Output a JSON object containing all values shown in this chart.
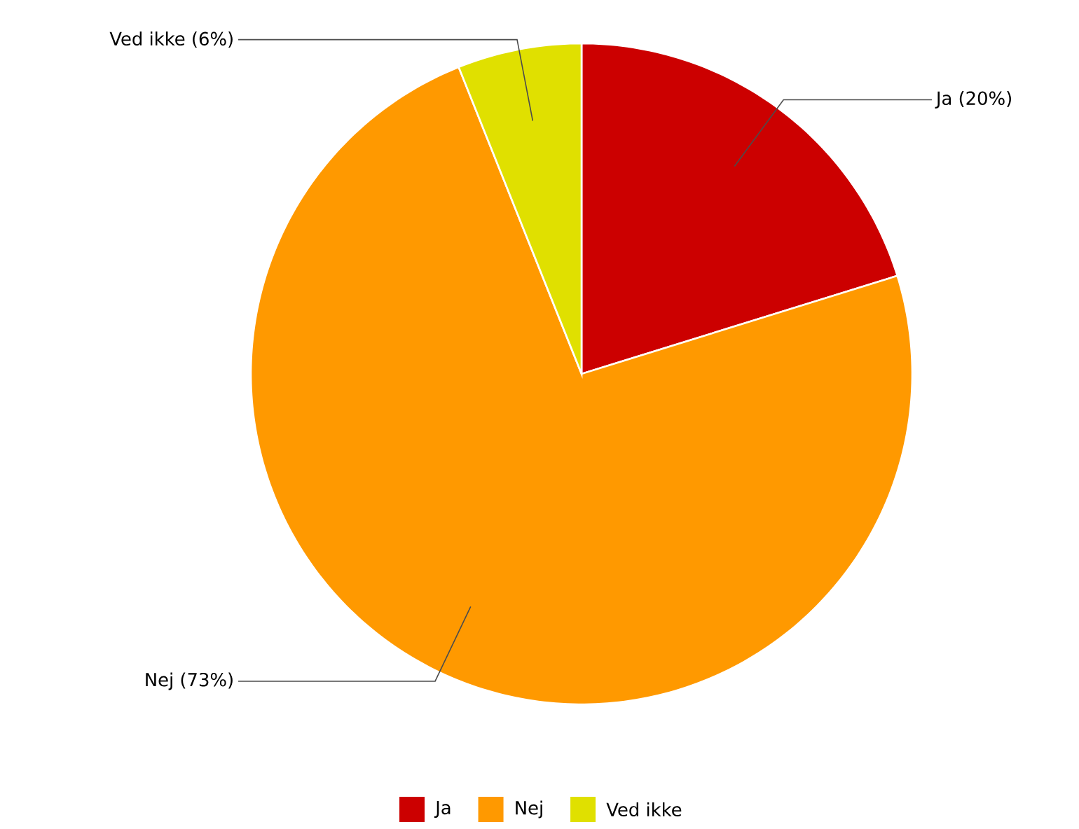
{
  "chart_data": {
    "type": "pie",
    "categories": [
      "Ja",
      "Nej",
      "Ved ikke"
    ],
    "values": [
      20,
      73,
      6
    ],
    "colors": [
      "#cc0000",
      "#ff9900",
      "#e0e000"
    ],
    "value_labels": [
      "Ja (20%)",
      "Nej (73%)",
      "Ved ikke (6%)"
    ],
    "legend": "bottom"
  }
}
